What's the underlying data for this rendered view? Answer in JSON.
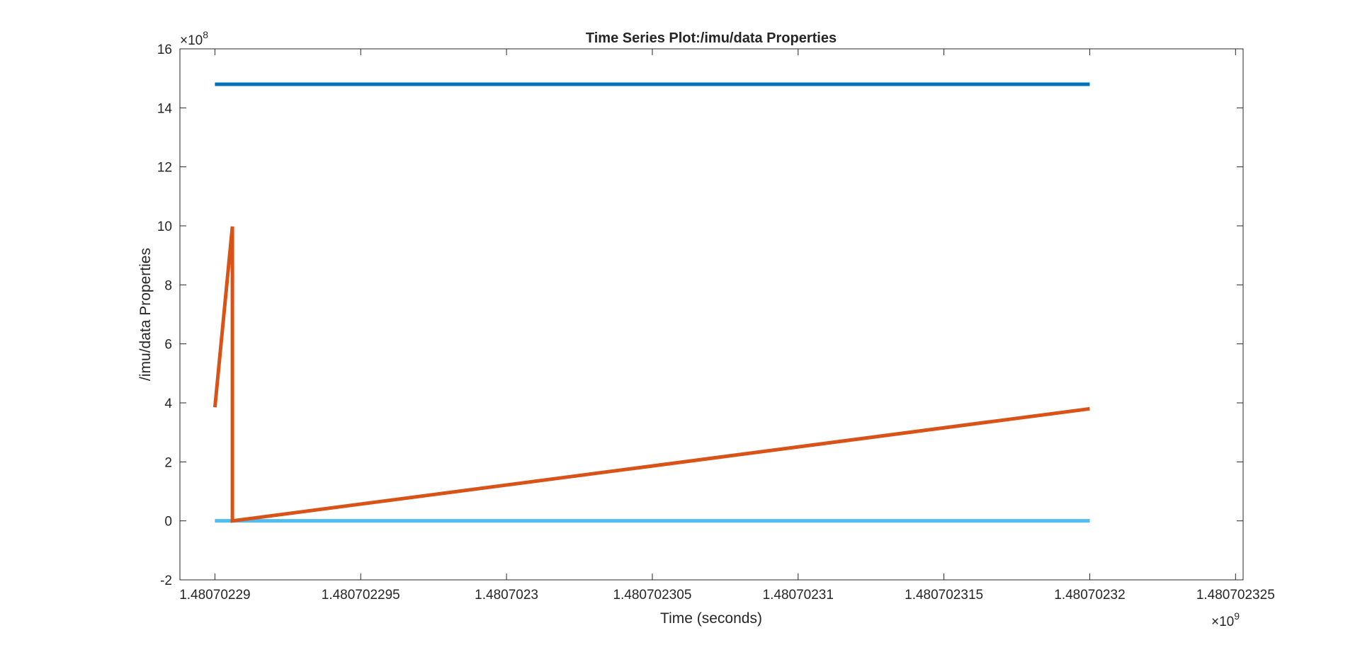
{
  "colors": {
    "background": "#ffffff",
    "axes": "#262626",
    "series_count": "#0072BD",
    "series_sawtooth": "#D95319",
    "series_zero": "#4DBEEE"
  },
  "chart_data": {
    "type": "line",
    "title": "Time Series Plot:/imu/data Properties",
    "xlabel": "Time (seconds)",
    "ylabel": "/imu/data Properties",
    "x_exponent": "×10",
    "x_exponent_power": "9",
    "y_exponent": "×10",
    "y_exponent_power": "8",
    "xlim": [
      1.4807022888,
      1.48070232526
    ],
    "ylim": [
      -2,
      16
    ],
    "x_ticks": [
      1.48070229,
      1.480702295,
      1.4807023,
      1.480702305,
      1.48070231,
      1.480702315,
      1.48070232,
      1.480702325
    ],
    "x_tick_labels": [
      "1.48070229",
      "1.480702295",
      "1.4807023",
      "1.480702305",
      "1.48070231",
      "1.480702315",
      "1.48070232",
      "1.480702325"
    ],
    "y_ticks": [
      -2,
      0,
      2,
      4,
      6,
      8,
      10,
      12,
      14,
      16
    ],
    "y_tick_labels": [
      "-2",
      "0",
      "2",
      "4",
      "6",
      "8",
      "10",
      "12",
      "14",
      "16"
    ],
    "grid": false,
    "legend": "none",
    "series": [
      {
        "values": [
          [
            1.48070229,
            14.8
          ],
          [
            1.48070232,
            14.8
          ]
        ],
        "color": "#0072BD"
      },
      {
        "sawtooth": {
          "x_start": 1.48070229,
          "x_end": 1.48070232,
          "start_value": 3.85,
          "end_value": 3.8,
          "peak": 9.98,
          "trough": 0.0,
          "first_peak_x": 1.4807022906,
          "period": 1e-06
        },
        "color": "#D95319"
      },
      {
        "values": [
          [
            1.48070229,
            0.0
          ],
          [
            1.48070232,
            0.0
          ]
        ],
        "color": "#4DBEEE"
      }
    ]
  }
}
